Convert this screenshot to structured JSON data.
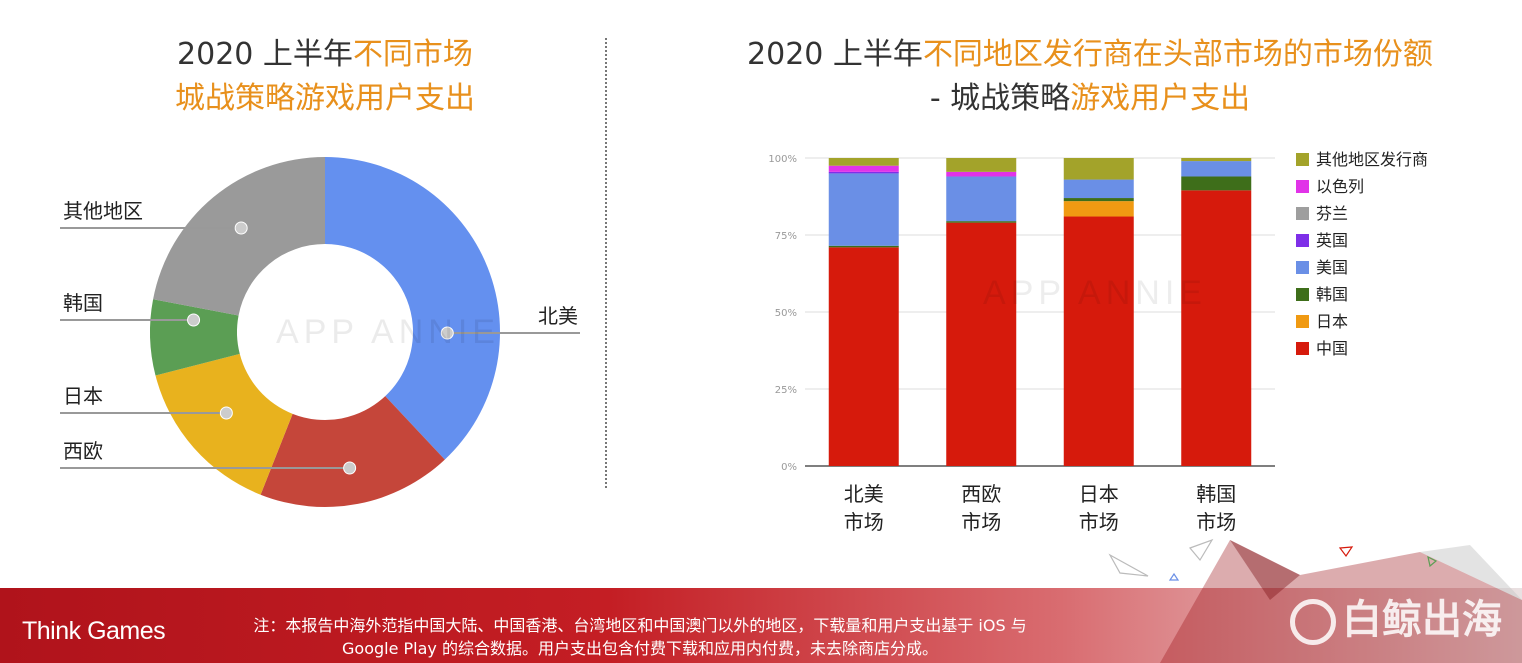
{
  "left_title": {
    "prefix": "2020 上半年",
    "accent1": "不同市场",
    "line2": "城战策略游戏用户支出"
  },
  "right_title": {
    "prefix": "2020 上半年",
    "accent1": "不同地区发行商在头部市场的市场份额",
    "line2_prefix": "- 城战策略",
    "line2_accent": "游戏用户支出"
  },
  "watermark_chart": "APP ANNIE",
  "chart_data": [
    {
      "type": "pie",
      "variant": "donut",
      "title": "2020 上半年不同市场城战策略游戏用户支出",
      "categories": [
        "北美",
        "西欧",
        "日本",
        "韩国",
        "其他地区"
      ],
      "values": [
        38,
        18,
        15,
        7,
        22
      ],
      "colors": [
        "#6490ef",
        "#c5463a",
        "#e8b21e",
        "#5b9e54",
        "#9a9a9a"
      ],
      "start": "top, clockwise"
    },
    {
      "type": "bar",
      "stacked": true,
      "title": "2020 上半年不同地区发行商在头部市场的市场份额 - 城战策略游戏用户支出",
      "categories": [
        "北美市场",
        "西欧市场",
        "日本市场",
        "韩国市场"
      ],
      "category_labels": [
        [
          "北美",
          "市场"
        ],
        [
          "西欧",
          "市场"
        ],
        [
          "日本",
          "市场"
        ],
        [
          "韩国",
          "市场"
        ]
      ],
      "ylim": [
        0,
        100
      ],
      "yticks": [
        "0%",
        "25%",
        "50%",
        "75%",
        "100%"
      ],
      "ytick_values": [
        0,
        25,
        50,
        75,
        100
      ],
      "series": [
        {
          "name": "中国",
          "color": "#d61a0c",
          "values": [
            71,
            79,
            81,
            89.5
          ]
        },
        {
          "name": "日本",
          "color": "#f09a12",
          "values": [
            0,
            0,
            5,
            0
          ]
        },
        {
          "name": "韩国",
          "color": "#3e6e1a",
          "values": [
            0.5,
            0.5,
            1,
            4.5
          ]
        },
        {
          "name": "美国",
          "color": "#6a8fe6",
          "values": [
            23.5,
            14.5,
            6,
            5
          ]
        },
        {
          "name": "英国",
          "color": "#7e2fe8",
          "values": [
            0.5,
            0,
            0,
            0
          ]
        },
        {
          "name": "芬兰",
          "color": "#9e9e9e",
          "values": [
            0,
            0,
            0,
            0
          ]
        },
        {
          "name": "以色列",
          "color": "#e133e8",
          "values": [
            2,
            1.5,
            0,
            0
          ]
        },
        {
          "name": "其他地区发行商",
          "color": "#a3a32a",
          "values": [
            2.5,
            4.5,
            7,
            1
          ]
        }
      ],
      "legend_order": [
        "其他地区发行商",
        "以色列",
        "芬兰",
        "英国",
        "美国",
        "韩国",
        "日本",
        "中国"
      ],
      "legend_position": "right"
    }
  ],
  "footer": {
    "brand": "Think Games",
    "note_line1": "注：本报告中海外范指中国大陆、中国香港、台湾地区和中国澳门以外的地区，下载量和用户支出基于 iOS 与",
    "note_line2": "Google Play 的综合数据。用户支出包含付费下载和应用内付费，未去除商店分成。",
    "logo_text": "白鲸出海"
  }
}
